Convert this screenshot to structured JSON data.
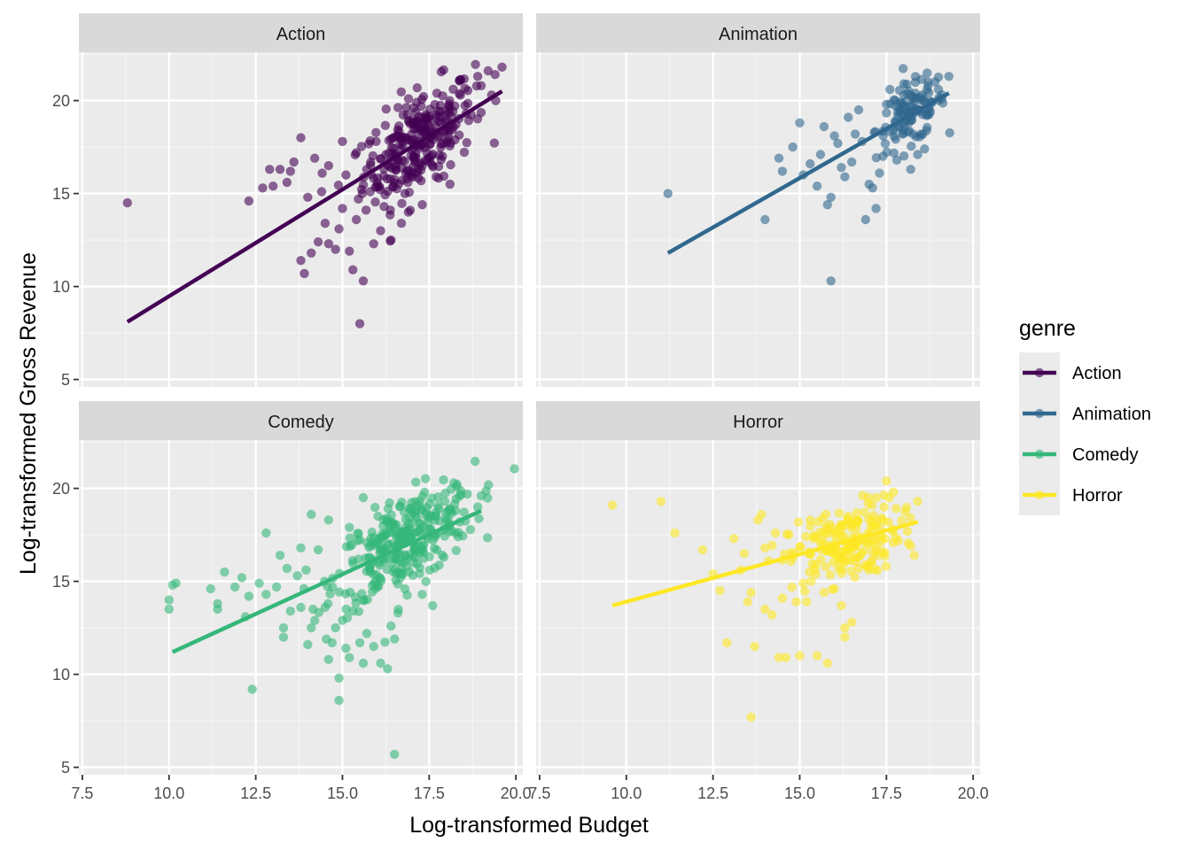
{
  "chart_data": {
    "type": "scatter",
    "xlabel": "Log-transformed Budget",
    "ylabel": "Log-transformed Gross Revenue",
    "xlim": [
      7.4,
      20.2
    ],
    "ylim": [
      4.6,
      22.6
    ],
    "x_ticks": [
      7.5,
      10,
      12.5,
      15,
      17.5,
      20
    ],
    "x_tick_labels": [
      "7.5",
      "10.0",
      "12.5",
      "15.0",
      "17.5",
      "20.0"
    ],
    "y_ticks": [
      5,
      10,
      15,
      20
    ],
    "y_tick_labels": [
      "5",
      "10",
      "15",
      "20"
    ],
    "grid": true,
    "legend": {
      "title": "genre",
      "placement": "right",
      "items": [
        {
          "label": "Action",
          "color": "#440154"
        },
        {
          "label": "Animation",
          "color": "#31688E"
        },
        {
          "label": "Comedy",
          "color": "#35B779"
        },
        {
          "label": "Horror",
          "color": "#FDE725"
        }
      ]
    },
    "facets": [
      {
        "name": "Action",
        "color": "#440154",
        "trend": {
          "x": [
            8.8,
            19.6
          ],
          "y": [
            8.1,
            20.5
          ]
        },
        "cluster": {
          "center": [
            17.2,
            17.8
          ],
          "spread": [
            0.8,
            1.3
          ],
          "slope": 1.15,
          "count": 280
        },
        "points": [
          [
            8.8,
            14.5
          ],
          [
            12.3,
            14.6
          ],
          [
            12.7,
            15.3
          ],
          [
            12.9,
            16.3
          ],
          [
            13.2,
            16.3
          ],
          [
            13.5,
            16.2
          ],
          [
            13.8,
            18.0
          ],
          [
            13.0,
            15.4
          ],
          [
            13.4,
            15.6
          ],
          [
            14.0,
            14.8
          ],
          [
            13.8,
            11.4
          ],
          [
            13.9,
            10.7
          ],
          [
            14.1,
            11.8
          ],
          [
            14.3,
            12.4
          ],
          [
            14.6,
            12.3
          ],
          [
            14.8,
            12.0
          ],
          [
            14.5,
            13.4
          ],
          [
            14.9,
            13.1
          ],
          [
            15.2,
            11.9
          ],
          [
            15.3,
            10.9
          ],
          [
            15.5,
            8.0
          ],
          [
            15.6,
            10.3
          ],
          [
            15.9,
            12.3
          ],
          [
            16.1,
            13.0
          ],
          [
            16.4,
            12.5
          ],
          [
            16.7,
            13.4
          ],
          [
            16.9,
            14.0
          ],
          [
            15.0,
            14.2
          ],
          [
            15.4,
            13.6
          ],
          [
            15.8,
            15.1
          ],
          [
            16.2,
            14.3
          ],
          [
            14.2,
            16.9
          ],
          [
            14.6,
            16.5
          ],
          [
            15.0,
            17.8
          ],
          [
            15.4,
            17.2
          ],
          [
            19.6,
            21.8
          ],
          [
            19.2,
            21.6
          ],
          [
            18.9,
            21.3
          ],
          [
            19.4,
            21.4
          ],
          [
            19.0,
            20.8
          ],
          [
            19.3,
            20.3
          ],
          [
            18.1,
            15.5
          ],
          [
            17.7,
            15.9
          ],
          [
            17.3,
            14.4
          ],
          [
            16.8,
            15.0
          ],
          [
            14.4,
            15.1
          ],
          [
            15.1,
            16.0
          ],
          [
            15.7,
            16.3
          ],
          [
            16.0,
            15.6
          ],
          [
            13.6,
            16.7
          ]
        ]
      },
      {
        "name": "Animation",
        "color": "#31688E",
        "trend": {
          "x": [
            11.2,
            19.3
          ],
          "y": [
            11.8,
            20.4
          ]
        },
        "cluster": {
          "center": [
            18.2,
            19.3
          ],
          "spread": [
            0.5,
            0.8
          ],
          "slope": 0.9,
          "count": 110
        },
        "points": [
          [
            11.2,
            15.0
          ],
          [
            14.0,
            13.6
          ],
          [
            14.4,
            16.9
          ],
          [
            14.5,
            16.2
          ],
          [
            14.8,
            17.5
          ],
          [
            15.1,
            16.0
          ],
          [
            15.3,
            16.6
          ],
          [
            15.5,
            15.4
          ],
          [
            15.6,
            17.1
          ],
          [
            15.7,
            18.6
          ],
          [
            15.8,
            14.4
          ],
          [
            15.9,
            14.8
          ],
          [
            15.9,
            10.3
          ],
          [
            16.0,
            18.1
          ],
          [
            16.1,
            17.7
          ],
          [
            16.2,
            16.4
          ],
          [
            16.3,
            15.9
          ],
          [
            16.5,
            16.7
          ],
          [
            16.6,
            18.2
          ],
          [
            16.8,
            17.8
          ],
          [
            16.9,
            13.6
          ],
          [
            17.0,
            15.5
          ],
          [
            17.1,
            15.3
          ],
          [
            17.2,
            14.2
          ],
          [
            17.3,
            16.1
          ],
          [
            17.4,
            17.0
          ],
          [
            17.5,
            19.8
          ],
          [
            17.6,
            20.6
          ],
          [
            17.8,
            16.8
          ],
          [
            18.0,
            20.9
          ],
          [
            18.2,
            16.3
          ],
          [
            18.4,
            17.1
          ],
          [
            18.5,
            18.2
          ],
          [
            18.7,
            21.0
          ],
          [
            18.9,
            21.0
          ],
          [
            19.1,
            20.1
          ],
          [
            19.3,
            21.3
          ],
          [
            17.7,
            18.4
          ],
          [
            16.4,
            19.1
          ],
          [
            15.0,
            18.8
          ],
          [
            16.7,
            19.5
          ],
          [
            18.6,
            17.4
          ],
          [
            19.0,
            20.6
          ],
          [
            17.9,
            19.9
          ]
        ]
      },
      {
        "name": "Comedy",
        "color": "#35B779",
        "trend": {
          "x": [
            10.1,
            19.0
          ],
          "y": [
            11.2,
            18.8
          ]
        },
        "cluster": {
          "center": [
            16.8,
            17.1
          ],
          "spread": [
            1.0,
            1.2
          ],
          "slope": 0.95,
          "count": 320
        },
        "points": [
          [
            10.0,
            14.0
          ],
          [
            10.0,
            13.5
          ],
          [
            10.1,
            14.8
          ],
          [
            10.2,
            14.9
          ],
          [
            11.2,
            14.6
          ],
          [
            11.4,
            13.8
          ],
          [
            11.4,
            13.5
          ],
          [
            11.6,
            15.5
          ],
          [
            11.9,
            14.7
          ],
          [
            12.1,
            15.2
          ],
          [
            12.2,
            13.1
          ],
          [
            12.3,
            14.2
          ],
          [
            12.4,
            9.2
          ],
          [
            12.6,
            14.9
          ],
          [
            12.8,
            14.3
          ],
          [
            12.8,
            17.6
          ],
          [
            13.1,
            14.7
          ],
          [
            13.2,
            16.4
          ],
          [
            13.3,
            12.5
          ],
          [
            13.3,
            12.0
          ],
          [
            13.4,
            15.7
          ],
          [
            13.5,
            13.4
          ],
          [
            13.7,
            15.3
          ],
          [
            13.8,
            13.6
          ],
          [
            14.0,
            11.6
          ],
          [
            14.1,
            12.5
          ],
          [
            14.2,
            12.9
          ],
          [
            14.3,
            16.7
          ],
          [
            14.5,
            13.6
          ],
          [
            14.6,
            10.8
          ],
          [
            14.7,
            11.7
          ],
          [
            14.8,
            12.5
          ],
          [
            14.9,
            9.8
          ],
          [
            14.9,
            8.6
          ],
          [
            15.0,
            12.9
          ],
          [
            15.1,
            11.4
          ],
          [
            15.2,
            10.9
          ],
          [
            15.3,
            13.4
          ],
          [
            15.5,
            11.7
          ],
          [
            15.6,
            10.6
          ],
          [
            15.7,
            12.2
          ],
          [
            15.9,
            11.5
          ],
          [
            16.1,
            10.6
          ],
          [
            16.3,
            10.3
          ],
          [
            16.4,
            12.6
          ],
          [
            16.5,
            11.9
          ],
          [
            16.6,
            13.3
          ],
          [
            16.5,
            5.7
          ],
          [
            15.2,
            17.9
          ],
          [
            15.6,
            19.5
          ],
          [
            14.1,
            18.6
          ],
          [
            14.6,
            18.3
          ],
          [
            13.8,
            16.8
          ],
          [
            18.9,
            19.0
          ],
          [
            18.6,
            19.7
          ],
          [
            19.0,
            19.6
          ],
          [
            18.3,
            20.1
          ],
          [
            17.3,
            14.3
          ],
          [
            17.6,
            13.7
          ],
          [
            16.8,
            14.6
          ]
        ]
      },
      {
        "name": "Horror",
        "color": "#FDE725",
        "trend": {
          "x": [
            9.6,
            18.4
          ],
          "y": [
            13.7,
            18.2
          ]
        },
        "cluster": {
          "center": [
            16.3,
            17.0
          ],
          "spread": [
            0.8,
            1.0
          ],
          "slope": 0.55,
          "count": 180
        },
        "points": [
          [
            9.6,
            19.1
          ],
          [
            11.0,
            19.3
          ],
          [
            11.4,
            17.6
          ],
          [
            12.2,
            16.7
          ],
          [
            12.5,
            15.4
          ],
          [
            12.7,
            14.5
          ],
          [
            12.9,
            11.7
          ],
          [
            13.1,
            17.3
          ],
          [
            13.3,
            15.6
          ],
          [
            13.4,
            16.5
          ],
          [
            13.5,
            13.9
          ],
          [
            13.6,
            7.7
          ],
          [
            13.6,
            14.4
          ],
          [
            13.7,
            11.5
          ],
          [
            13.8,
            18.3
          ],
          [
            14.0,
            16.8
          ],
          [
            14.0,
            13.5
          ],
          [
            14.2,
            13.2
          ],
          [
            14.3,
            17.6
          ],
          [
            14.4,
            10.9
          ],
          [
            14.5,
            14.1
          ],
          [
            14.6,
            10.9
          ],
          [
            14.8,
            16.3
          ],
          [
            14.9,
            13.9
          ],
          [
            15.0,
            11.0
          ],
          [
            15.1,
            14.9
          ],
          [
            15.2,
            13.9
          ],
          [
            15.5,
            11.0
          ],
          [
            15.7,
            14.4
          ],
          [
            15.8,
            10.6
          ],
          [
            16.0,
            14.6
          ],
          [
            16.2,
            13.7
          ],
          [
            16.3,
            12.5
          ],
          [
            16.3,
            12.0
          ],
          [
            16.5,
            12.8
          ],
          [
            16.7,
            15.7
          ],
          [
            17.2,
            19.5
          ],
          [
            17.5,
            20.4
          ],
          [
            17.7,
            19.8
          ],
          [
            18.2,
            16.9
          ],
          [
            18.3,
            16.4
          ],
          [
            18.4,
            19.3
          ],
          [
            18.1,
            17.7
          ],
          [
            17.0,
            15.6
          ],
          [
            16.4,
            18.5
          ],
          [
            15.3,
            18.3
          ],
          [
            14.1,
            16.1
          ],
          [
            13.9,
            18.6
          ]
        ]
      }
    ]
  }
}
